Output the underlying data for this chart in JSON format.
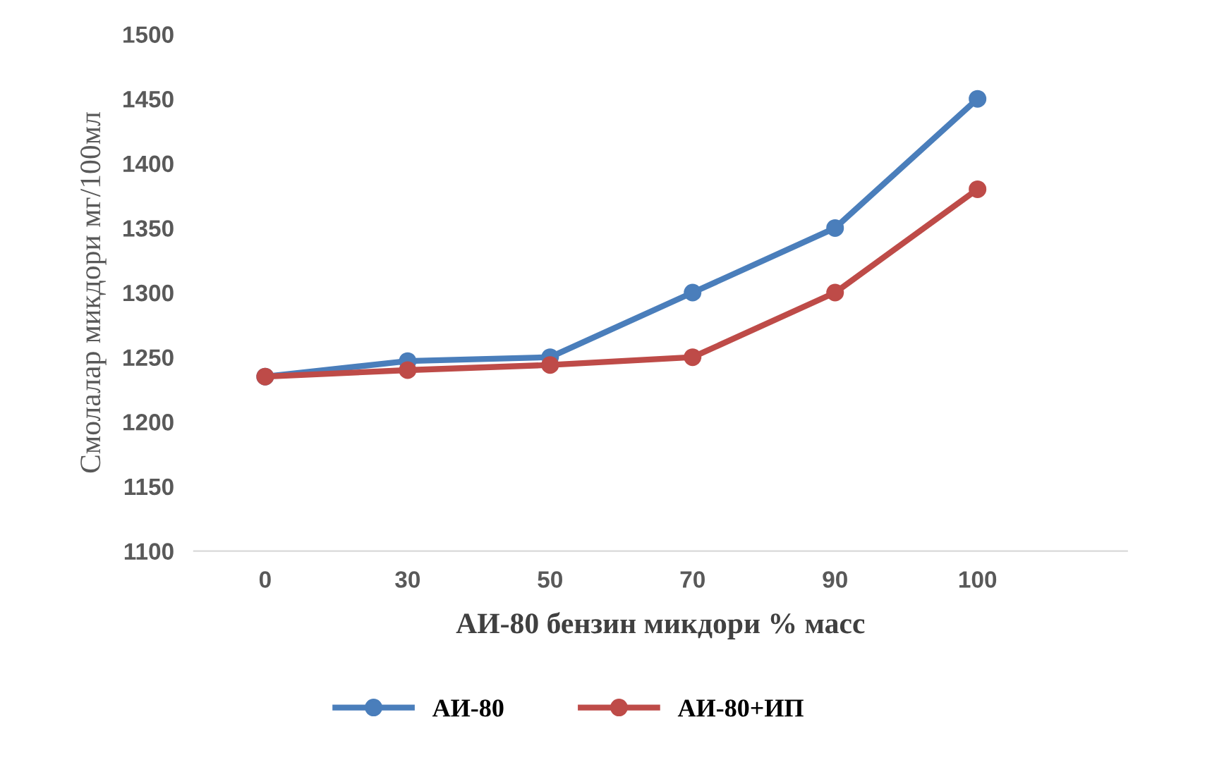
{
  "chart_data": {
    "type": "line",
    "xlabel": "АИ-80 бензин микдори % масс",
    "ylabel": "Смолалар микдори мг/100мл",
    "categories": [
      "0",
      "30",
      "50",
      "70",
      "90",
      "100"
    ],
    "series": [
      {
        "name": "АИ-80",
        "color": "#4a7ebb",
        "values": [
          1235,
          1247,
          1250,
          1300,
          1350,
          1450
        ]
      },
      {
        "name": "АИ-80+ИП",
        "color": "#be4b48",
        "values": [
          1235,
          1240,
          1244,
          1250,
          1300,
          1380
        ]
      }
    ],
    "ylim": [
      1100,
      1500
    ],
    "yticks": [
      1100,
      1150,
      1200,
      1250,
      1300,
      1350,
      1400,
      1450,
      1500
    ],
    "grid": false,
    "legend": "bottom",
    "marker": "circle",
    "line_style": "solid"
  }
}
